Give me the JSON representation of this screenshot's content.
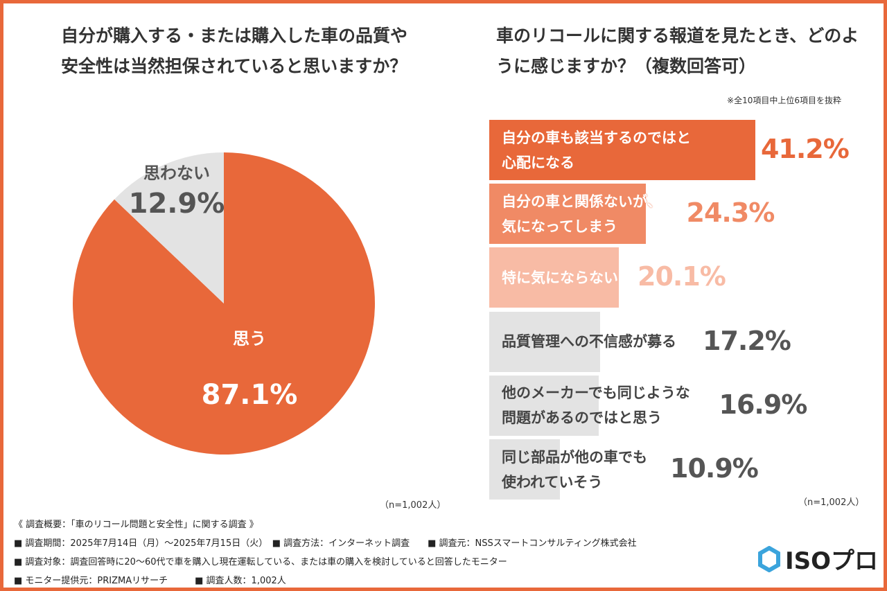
{
  "chart_data": [
    {
      "type": "pie",
      "title": "自分が購入する・または購入した車の品質や安全性は当然担保されていると思いますか？",
      "slices": [
        {
          "label": "思う",
          "value": 87.1,
          "display": "87.1%",
          "color": "#E8683A"
        },
        {
          "label": "思わない",
          "value": 12.9,
          "display": "12.9%",
          "color": "#E3E3E3"
        }
      ],
      "note": "（n=1,002人）"
    },
    {
      "type": "bar",
      "orientation": "horizontal",
      "title": "車のリコールに関する報道を見たとき、どのように感じますか？（複数回答可）",
      "subtitle": "※全10項目中上位6項目を抜粋",
      "categories": [
        "自分の車も該当するのではと心配になる",
        "自分の車と関係ないが、気になってしまう",
        "特に気にならない",
        "品質管理への不信感が募る",
        "他のメーカーでも同じような問題があるのではと思う",
        "同じ部品が他の車でも使われていそう"
      ],
      "lines": [
        [
          "自分の車も該当するのではと",
          "心配になる"
        ],
        [
          "自分の車と関係ないが、",
          "気になってしまう"
        ],
        [
          "特に気にならない"
        ],
        [
          "品質管理への不信感が募る"
        ],
        [
          "他のメーカーでも同じような",
          "問題があるのではと思う"
        ],
        [
          "同じ部品が他の車でも",
          "使われていそう"
        ]
      ],
      "values": [
        41.2,
        24.3,
        20.1,
        17.2,
        16.9,
        10.9
      ],
      "display": [
        "41.2%",
        "24.3%",
        "20.1%",
        "17.2%",
        "16.9%",
        "10.9%"
      ],
      "colors": [
        "#E8683A",
        "#F08A65",
        "#F8BBA5",
        "#E3E3E3",
        "#E3E3E3",
        "#E3E3E3"
      ],
      "value_colors": [
        "#E8683A",
        "#F08A65",
        "#F8BBA5",
        "#555555",
        "#555555",
        "#555555"
      ],
      "label_colors": [
        "#ffffff",
        "#ffffff",
        "#ffffff",
        "#444444",
        "#444444",
        "#444444"
      ],
      "note": "（n=1,002人）"
    }
  ],
  "footer": {
    "lines": [
      "《 調査概要：「車のリコール問題と安全性」に関する調査 》",
      "■ 調査期間：2025年7月14日（月）～2025年7月15日（火）　■ 調査方法：インターネット調査　　■ 調査元：NSSスマートコンサルティング株式会社",
      "■ 調査対象：調査回答時に20～60代で車を購入し現在運転している、または車の購入を検討していると回答したモニター",
      "■ モニター提供元：PRIZMAリサーチ　　　■ 調査人数：1,002人"
    ],
    "logo": "ISOプロ"
  }
}
